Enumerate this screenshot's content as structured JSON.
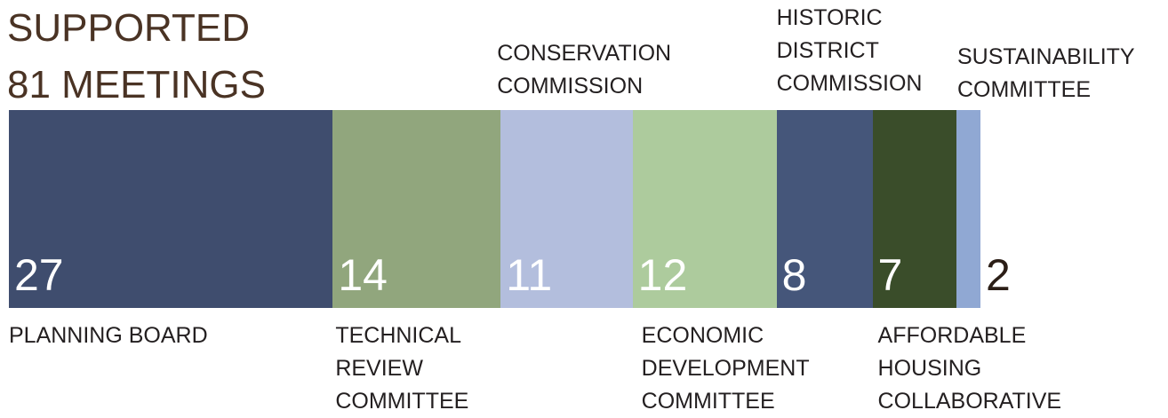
{
  "chart_data": {
    "type": "proportional-bar",
    "title_lines": [
      "SUPPORTED",
      "81 MEETINGS"
    ],
    "categories": [
      "PLANNING BOARD",
      "TECHNICAL REVIEW COMMITTEE",
      "CONSERVATION COMMISSION",
      "ECONOMIC DEVELOPMENT COMMITTEE",
      "HISTORIC DISTRICT COMMISSION",
      "AFFORDABLE HOUSING COLLABORATIVE",
      "SUSTAINABILITY COMMITTEE"
    ],
    "values": [
      27,
      14,
      11,
      12,
      8,
      7,
      2
    ],
    "colors": [
      "#3f4d6e",
      "#91a67d",
      "#b3bedd",
      "#adcb9d",
      "#45567a",
      "#3a4d2a",
      "#90a8d3"
    ]
  }
}
